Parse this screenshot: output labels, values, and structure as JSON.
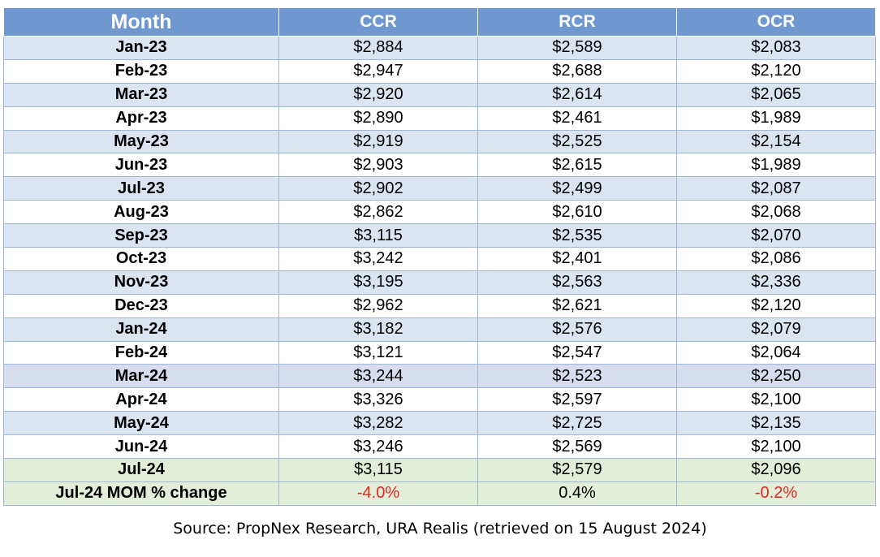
{
  "colors": {
    "header_bg": "#6e98cf",
    "row_alt": "#dbe5f2",
    "row_plain": "#ffffff",
    "row_highlight": "#d5ddee",
    "row_latest": "#e3eed8",
    "negative": "#e8231e"
  },
  "chart_data": {
    "type": "table",
    "columns": [
      "Month",
      "CCR",
      "RCR",
      "OCR"
    ],
    "rows": [
      {
        "month": "Jan-23",
        "ccr": "$2,884",
        "rcr": "$2,589",
        "ocr": "$2,083"
      },
      {
        "month": "Feb-23",
        "ccr": "$2,947",
        "rcr": "$2,688",
        "ocr": "$2,120"
      },
      {
        "month": "Mar-23",
        "ccr": "$2,920",
        "rcr": "$2,614",
        "ocr": "$2,065"
      },
      {
        "month": "Apr-23",
        "ccr": "$2,890",
        "rcr": "$2,461",
        "ocr": "$1,989"
      },
      {
        "month": "May-23",
        "ccr": "$2,919",
        "rcr": "$2,525",
        "ocr": "$2,154"
      },
      {
        "month": "Jun-23",
        "ccr": "$2,903",
        "rcr": "$2,615",
        "ocr": "$1,989"
      },
      {
        "month": "Jul-23",
        "ccr": "$2,902",
        "rcr": "$2,499",
        "ocr": "$2,087"
      },
      {
        "month": "Aug-23",
        "ccr": "$2,862",
        "rcr": "$2,610",
        "ocr": "$2,068"
      },
      {
        "month": "Sep-23",
        "ccr": "$3,115",
        "rcr": "$2,535",
        "ocr": "$2,070"
      },
      {
        "month": "Oct-23",
        "ccr": "$3,242",
        "rcr": "$2,401",
        "ocr": "$2,086"
      },
      {
        "month": "Nov-23",
        "ccr": "$3,195",
        "rcr": "$2,563",
        "ocr": "$2,336"
      },
      {
        "month": "Dec-23",
        "ccr": "$2,962",
        "rcr": "$2,621",
        "ocr": "$2,120"
      },
      {
        "month": "Jan-24",
        "ccr": "$3,182",
        "rcr": "$2,576",
        "ocr": "$2,079"
      },
      {
        "month": "Feb-24",
        "ccr": "$3,121",
        "rcr": "$2,547",
        "ocr": "$2,064"
      },
      {
        "month": "Mar-24",
        "ccr": "$3,244",
        "rcr": "$2,523",
        "ocr": "$2,250"
      },
      {
        "month": "Apr-24",
        "ccr": "$3,326",
        "rcr": "$2,597",
        "ocr": "$2,100"
      },
      {
        "month": "May-24",
        "ccr": "$3,282",
        "rcr": "$2,725",
        "ocr": "$2,135"
      },
      {
        "month": "Jun-24",
        "ccr": "$3,246",
        "rcr": "$2,569",
        "ocr": "$2,100"
      },
      {
        "month": "Jul-24",
        "ccr": "$3,115",
        "rcr": "$2,579",
        "ocr": "$2,096"
      }
    ],
    "change_row": {
      "label": "Jul-24 MOM % change",
      "ccr": "-4.0%",
      "rcr": "0.4%",
      "ocr": "-0.2%"
    }
  },
  "source": "Source: PropNex Research, URA Realis (retrieved on 15 August 2024)"
}
